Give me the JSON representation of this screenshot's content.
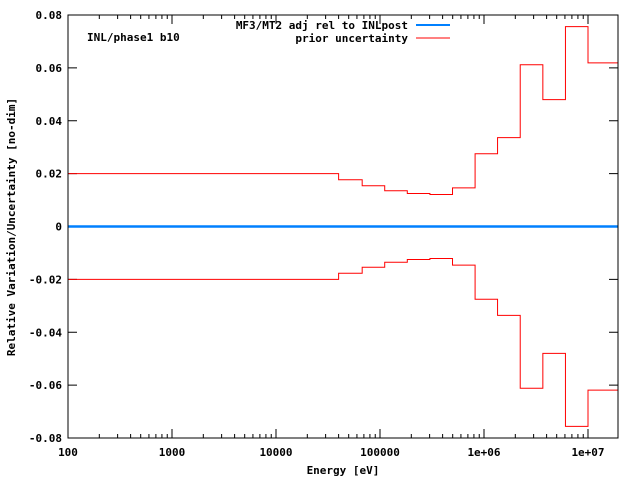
{
  "chart_data": {
    "type": "line",
    "step": true,
    "title": "",
    "annotation": "INL/phase1 b10",
    "xlabel": "Energy [eV]",
    "ylabel": "Relative Variation/Uncertainty [no-dim]",
    "xscale": "log",
    "xlim": [
      100,
      20000000
    ],
    "ylim": [
      -0.08,
      0.08
    ],
    "grid": false,
    "legend_position": "top-right",
    "x_ticks": [
      {
        "value": 100,
        "label": "100"
      },
      {
        "value": 1000,
        "label": "1000"
      },
      {
        "value": 10000,
        "label": "10000"
      },
      {
        "value": 100000,
        "label": "100000"
      },
      {
        "value": 1000000,
        "label": "1e+06"
      },
      {
        "value": 10000000,
        "label": "1e+07"
      }
    ],
    "y_ticks": [
      {
        "value": 0.08,
        "label": "0.08"
      },
      {
        "value": 0.06,
        "label": "0.06"
      },
      {
        "value": 0.04,
        "label": "0.04"
      },
      {
        "value": 0.02,
        "label": "0.02"
      },
      {
        "value": 0,
        "label": "0"
      },
      {
        "value": -0.02,
        "label": "-0.02"
      },
      {
        "value": -0.04,
        "label": "-0.04"
      },
      {
        "value": -0.06,
        "label": "-0.06"
      },
      {
        "value": -0.08,
        "label": "-0.08"
      }
    ],
    "bin_edges": [
      100,
      40000,
      67400,
      111000,
      183000,
      302000,
      498000,
      821000,
      1350000,
      2230000,
      3680000,
      6070000,
      10000000,
      20000000
    ],
    "series": [
      {
        "name": "MF3/MT2 adj rel to INLpost",
        "color": "#0080ff",
        "values": [
          0,
          0,
          0,
          0,
          0,
          0,
          0,
          0,
          0,
          0,
          0,
          0,
          0
        ]
      },
      {
        "name": "prior uncertainty",
        "color": "#ff0000",
        "values": [
          0.02,
          0.0177,
          0.0154,
          0.0135,
          0.0125,
          0.0121,
          0.0146,
          0.0275,
          0.0336,
          0.0612,
          0.048,
          0.0756,
          0.0619
        ],
        "mirrored": true
      }
    ]
  }
}
